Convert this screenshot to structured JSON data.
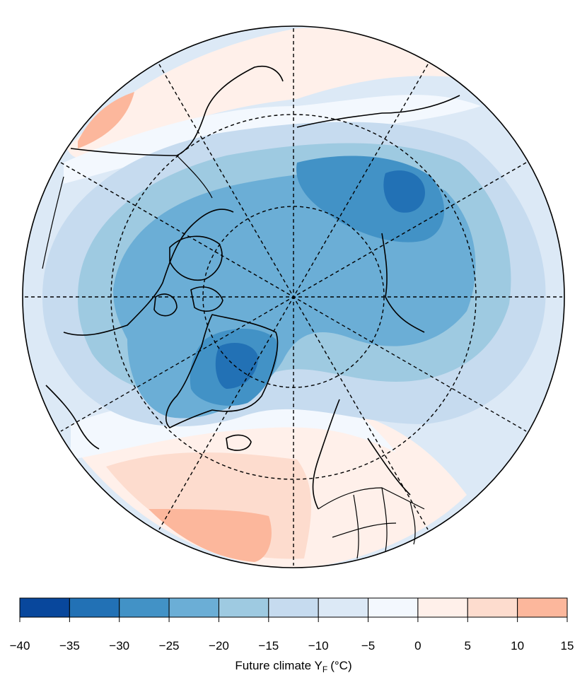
{
  "map": {
    "projection": "north-polar-stereographic",
    "graticule": "dashed",
    "coastlines": true,
    "country_borders": true
  },
  "legend": {
    "title_main": "Future climate Y",
    "title_sub": "F",
    "title_unit": "(°C)",
    "breaks": [
      "−40",
      "−35",
      "−30",
      "−25",
      "−20",
      "−15",
      "−10",
      "−5",
      "0",
      "5",
      "10",
      "15"
    ],
    "colors": [
      "#08479c",
      "#2271b5",
      "#4292c6",
      "#6baed6",
      "#9ecae1",
      "#c6dbef",
      "#dce9f6",
      "#f3f8fe",
      "#fff0ea",
      "#fddcce",
      "#fcb79c"
    ]
  }
}
